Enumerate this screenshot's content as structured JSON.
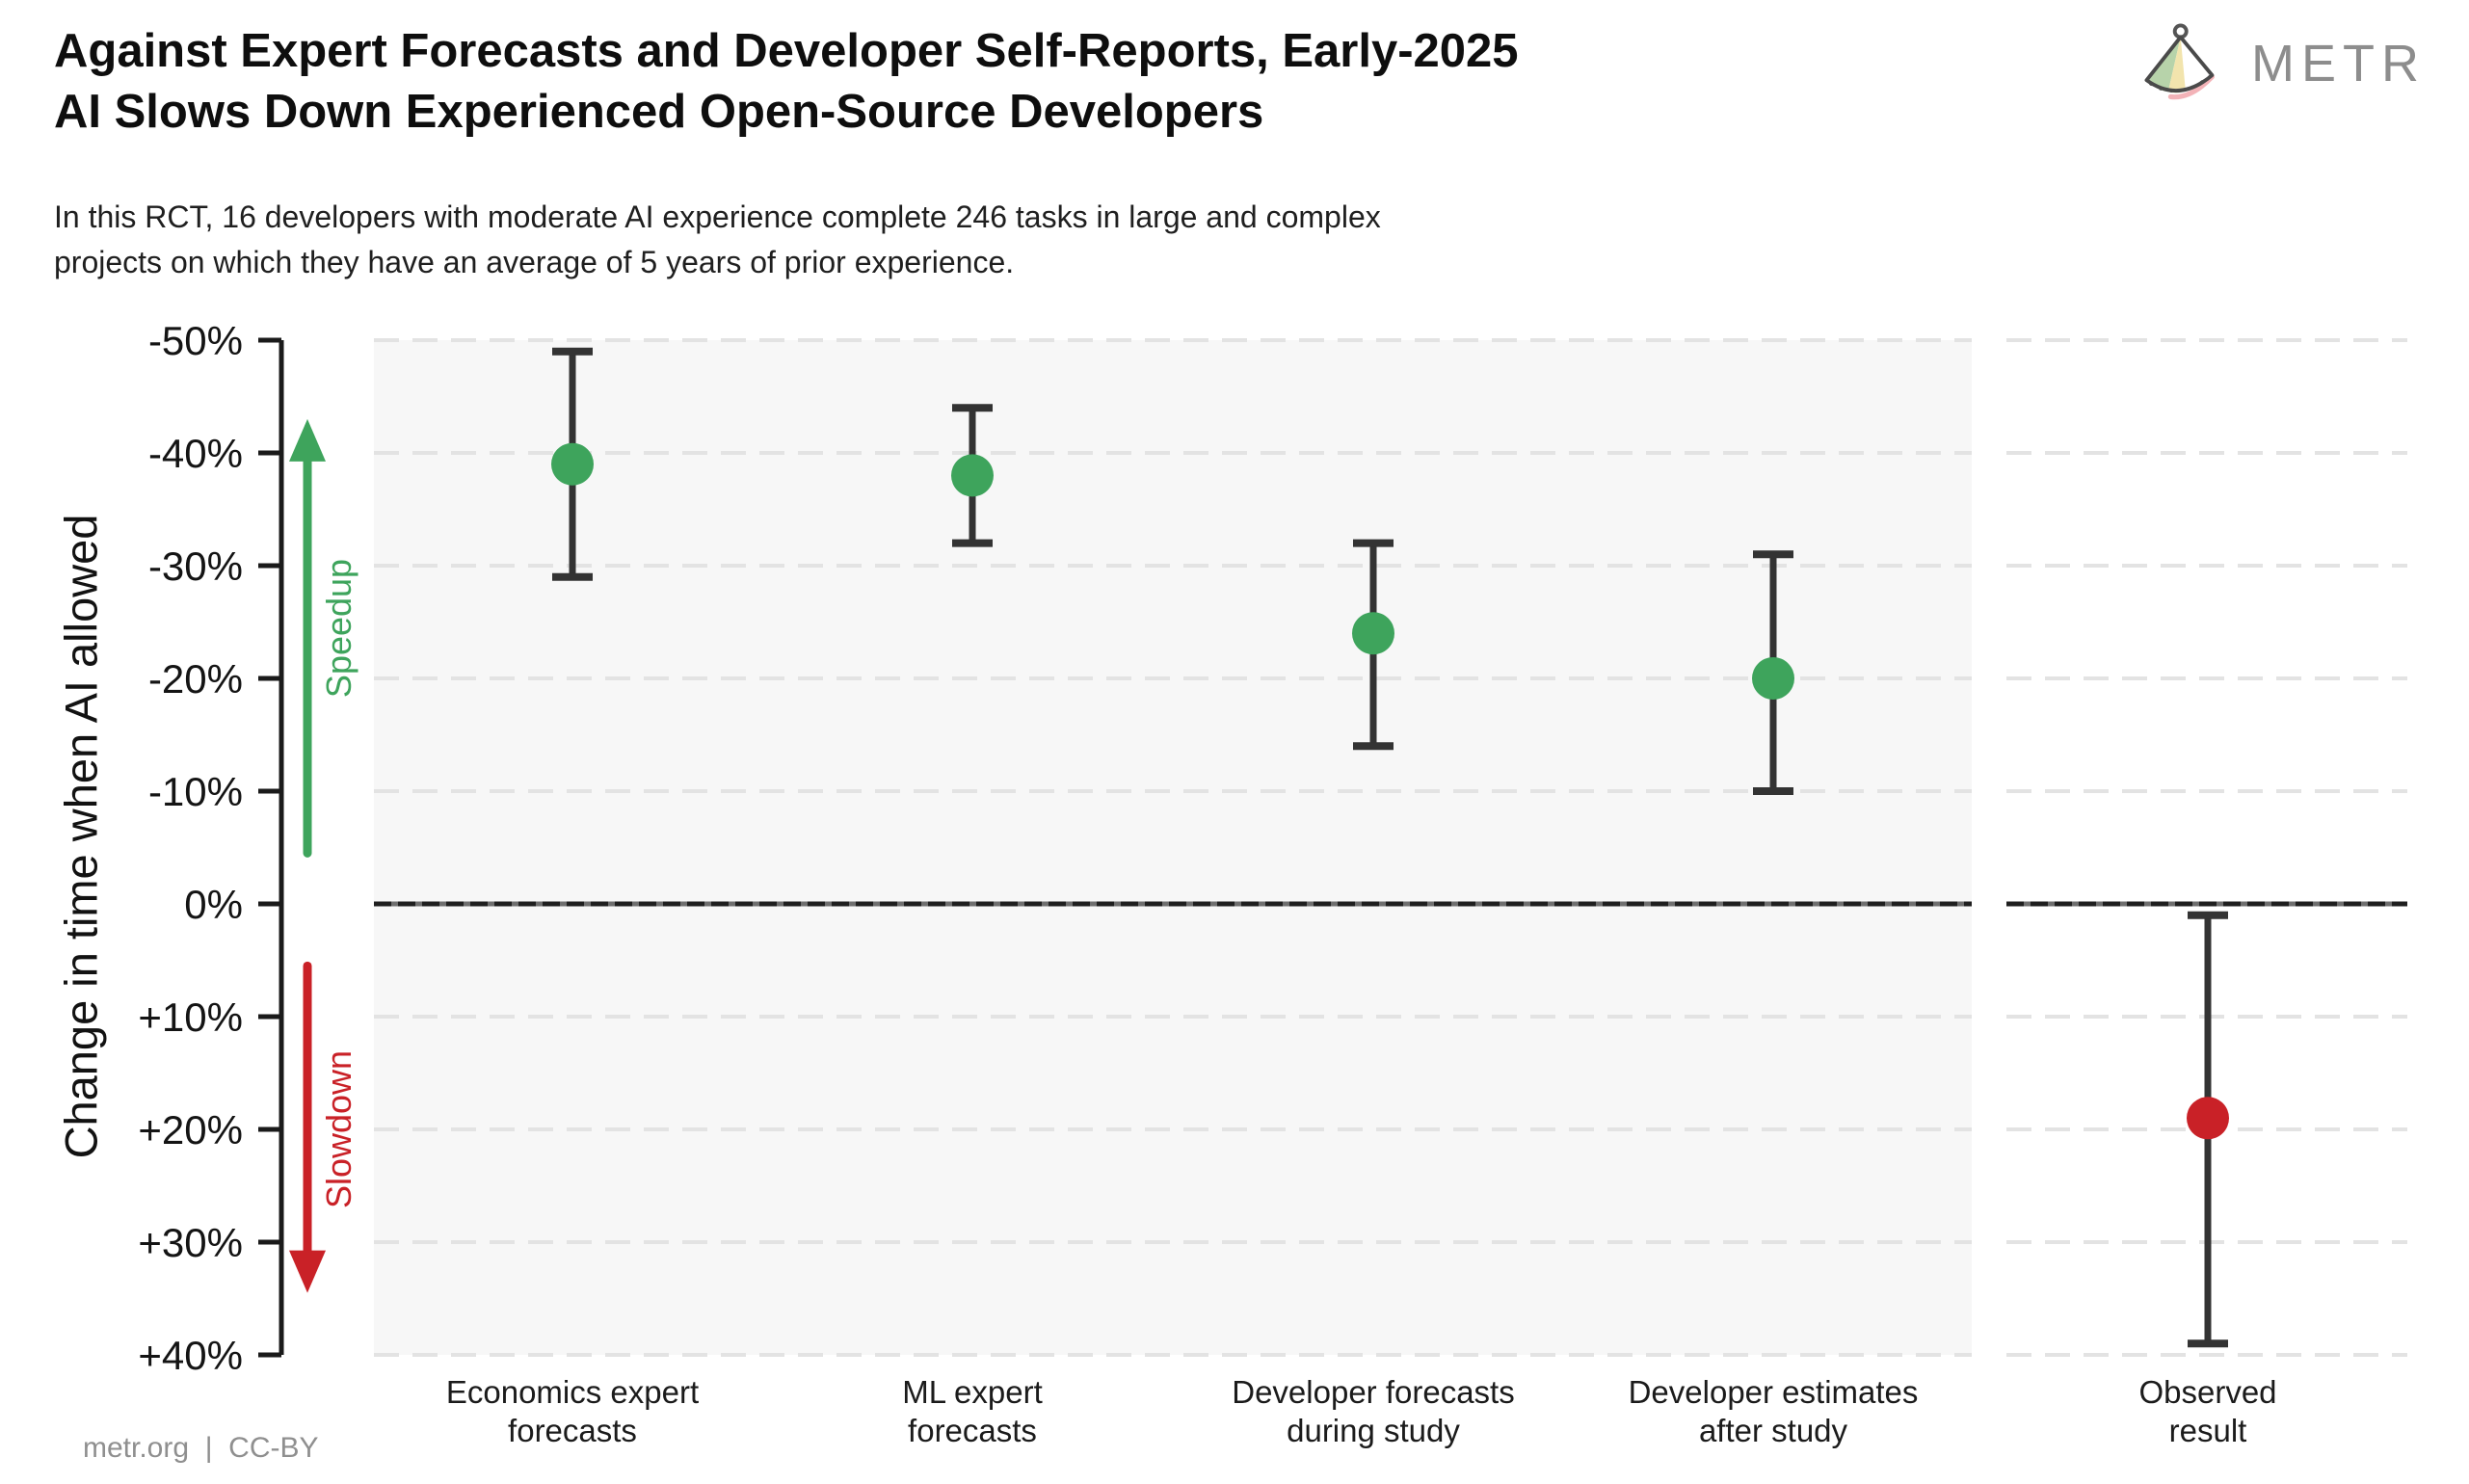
{
  "header": {
    "title_line1": "Against Expert Forecasts and Developer Self-Reports, Early-2025",
    "title_line2": "AI Slows Down Experienced Open-Source Developers",
    "subtitle_line1": "In this RCT, 16 developers with moderate AI experience complete 246 tasks in large and complex",
    "subtitle_line2": "projects on which they have an average of 5 years of prior experience.",
    "brand": "METR"
  },
  "footer": {
    "credit": "metr.org  |  CC-BY"
  },
  "chart_data": {
    "type": "scatter",
    "subtype": "dot-plot-with-error-bars",
    "ylabel": "Change in time when AI allowed",
    "ylim": [
      -50,
      40
    ],
    "y_axis_inverted_note": "-50% (speedup) at top, +40% (slowdown) at bottom",
    "grid": true,
    "zero_line_pct": 0,
    "y_ticks": [
      {
        "value": -50,
        "label": "-50%"
      },
      {
        "value": -40,
        "label": "-40%"
      },
      {
        "value": -30,
        "label": "-30%"
      },
      {
        "value": -20,
        "label": "-20%"
      },
      {
        "value": -10,
        "label": "-10%"
      },
      {
        "value": 0,
        "label": "0%"
      },
      {
        "value": 10,
        "label": "+10%"
      },
      {
        "value": 20,
        "label": "+20%"
      },
      {
        "value": 30,
        "label": "+30%"
      },
      {
        "value": 40,
        "label": "+40%"
      }
    ],
    "annotations": {
      "speedup": {
        "label": "Speedup",
        "direction": "up",
        "color": "green",
        "arrow_from_pct": -4.5,
        "arrow_to_pct": -43
      },
      "slowdown": {
        "label": "Slowdown",
        "direction": "down",
        "color": "red",
        "arrow_from_pct": 5.5,
        "arrow_to_pct": 34.5
      }
    },
    "categories": [
      "Economics expert forecasts",
      "ML expert forecasts",
      "Developer forecasts during study",
      "Developer estimates after study",
      "Observed result"
    ],
    "points": [
      {
        "category_lines": [
          "Economics expert",
          "forecasts"
        ],
        "value_pct": -39,
        "ci_pct": [
          -49,
          -29
        ],
        "color": "green",
        "panel": "main"
      },
      {
        "category_lines": [
          "ML expert",
          "forecasts"
        ],
        "value_pct": -38,
        "ci_pct": [
          -44,
          -32
        ],
        "color": "green",
        "panel": "main"
      },
      {
        "category_lines": [
          "Developer forecasts",
          "during study"
        ],
        "value_pct": -24,
        "ci_pct": [
          -32,
          -14
        ],
        "color": "green",
        "panel": "main"
      },
      {
        "category_lines": [
          "Developer estimates",
          "after study"
        ],
        "value_pct": -20,
        "ci_pct": [
          -31,
          -10
        ],
        "color": "green",
        "panel": "main"
      },
      {
        "category_lines": [
          "Observed",
          "result"
        ],
        "value_pct": 19,
        "ci_pct": [
          1,
          39
        ],
        "color": "red",
        "panel": "right"
      }
    ],
    "colors": {
      "green": "#3ea45c",
      "red": "#c92127",
      "bar": "#333333",
      "panel": "#f7f7f7",
      "grid": "#e3e3e3",
      "axis": "#1a1a1a",
      "text": "#141414",
      "muted": "#8f8f8f",
      "brand": "#8d8d8d"
    }
  }
}
